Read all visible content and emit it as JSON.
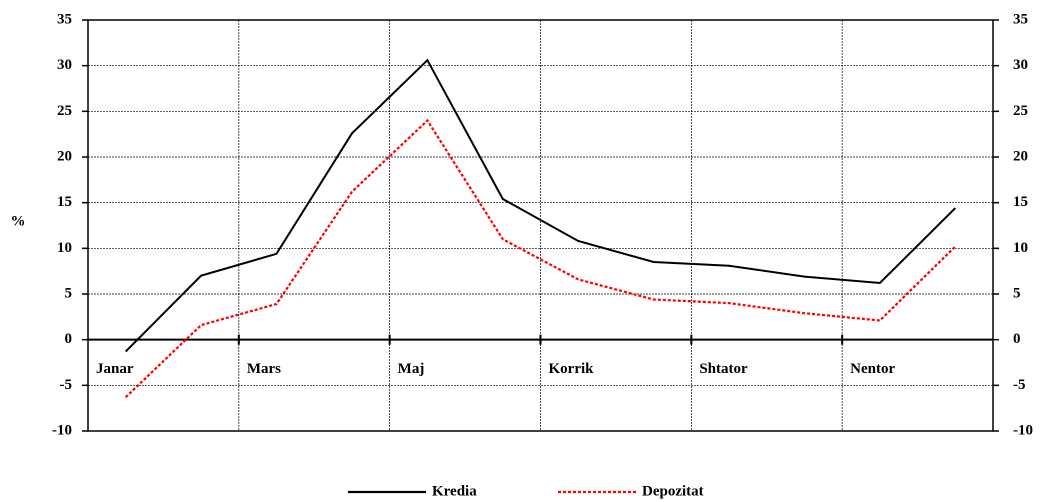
{
  "chart_data": {
    "type": "line",
    "y_label": "%",
    "categories": [
      "Janar",
      null,
      "Mars",
      null,
      "Maj",
      null,
      "Korrik",
      null,
      "Shtator",
      null,
      "Nentor",
      null
    ],
    "series": [
      {
        "name": "Kredia",
        "color": "#000000",
        "values": [
          -1.3,
          7.0,
          9.4,
          22.6,
          30.6,
          15.4,
          10.8,
          8.5,
          8.1,
          6.9,
          6.2,
          14.4
        ]
      },
      {
        "name": "Depozitat",
        "color": "#ff0000",
        "values": [
          -6.3,
          1.6,
          3.9,
          16.2,
          24.0,
          11.0,
          6.6,
          4.4,
          4.0,
          2.9,
          2.1,
          10.2
        ]
      }
    ],
    "ylim": [
      -10,
      35
    ],
    "yticks": [
      -10,
      -5,
      0,
      5,
      10,
      15,
      20,
      25,
      30,
      35
    ],
    "y2lim": [
      -10,
      35
    ],
    "y2ticks": [
      -10,
      -5,
      0,
      5,
      10,
      15,
      20,
      25,
      30,
      35
    ],
    "grid": true,
    "legend": "bottom"
  }
}
